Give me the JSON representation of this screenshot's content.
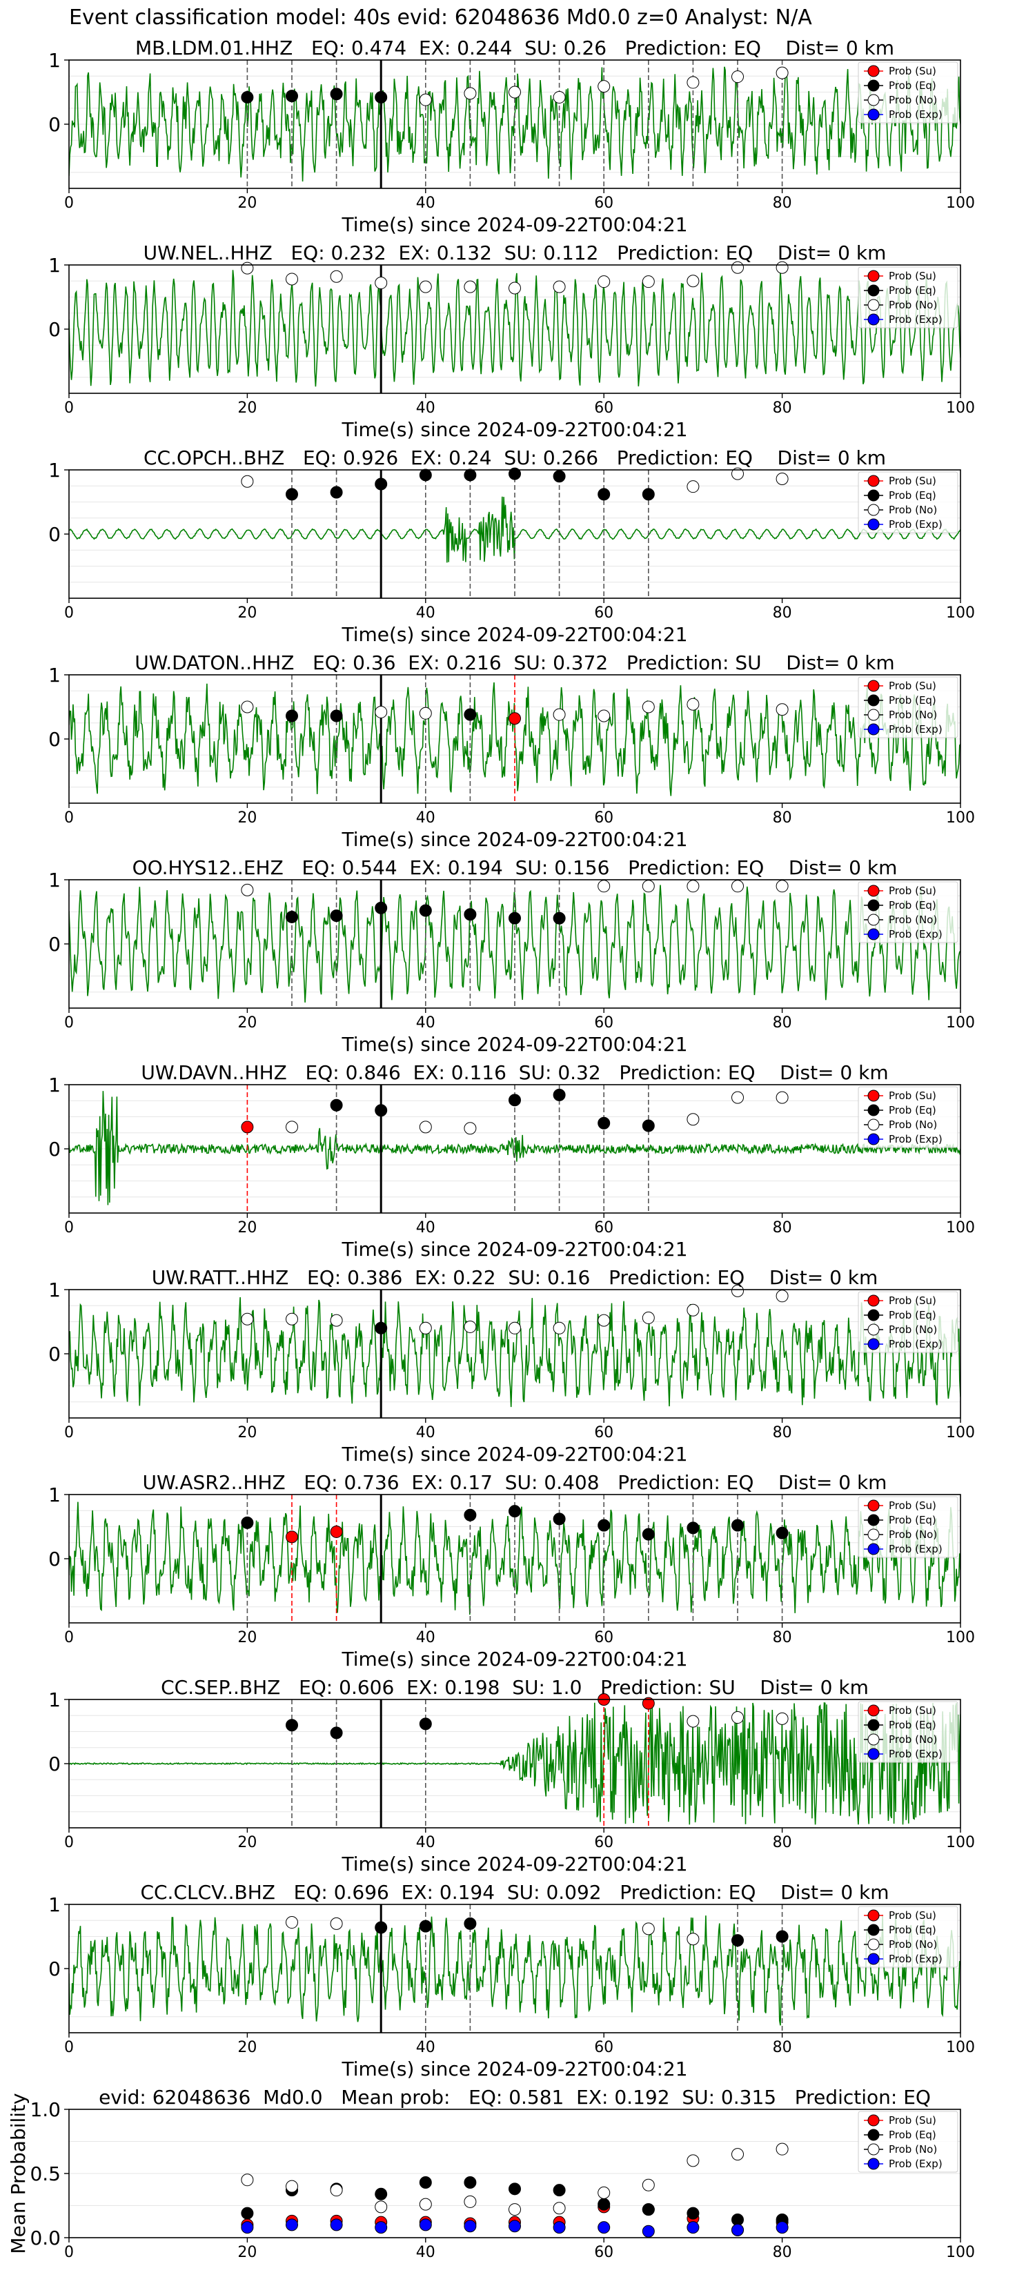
{
  "suptitle": "Event classification model: 40s evid: 62048636 Md0.0 z=0 Analyst: N/A",
  "legend_labels": [
    "Prob (Su)",
    "Prob (Eq)",
    "Prob (No)",
    "Prob (Exp)"
  ],
  "colors": {
    "trace": "#008000",
    "su": "#ff0000",
    "eq": "#000000",
    "no": "#ffffff",
    "exp": "#0000ff",
    "vline_dark": "#555555",
    "vline_red": "#ff0000"
  },
  "chart_data": [
    {
      "type": "line",
      "title": "MB.LDM.01.HHZ   EQ: 0.474  EX: 0.244  SU: 0.26   Prediction: EQ    Dist= 0 km",
      "xlabel": "Time(s) since 2024-09-22T00:04:21",
      "ylabel": "",
      "xlim": [
        0,
        100
      ],
      "ylim": [
        -1,
        1
      ],
      "xticks": [
        0,
        20,
        40,
        60,
        80,
        100
      ],
      "yticks": [
        0,
        1
      ],
      "grid": true,
      "legend": "top-right",
      "trace_style": "noisy",
      "arrival_time": 35,
      "window_lines": [
        20,
        25,
        30,
        40,
        45,
        50,
        55,
        60,
        65,
        70,
        75,
        80
      ],
      "red_lines": [],
      "points": [
        {
          "t": 20,
          "c": "eq",
          "p": 0.42
        },
        {
          "t": 25,
          "c": "eq",
          "p": 0.44
        },
        {
          "t": 30,
          "c": "eq",
          "p": 0.47
        },
        {
          "t": 35,
          "c": "eq",
          "p": 0.42
        },
        {
          "t": 40,
          "c": "no",
          "p": 0.38
        },
        {
          "t": 45,
          "c": "no",
          "p": 0.48
        },
        {
          "t": 50,
          "c": "no",
          "p": 0.5
        },
        {
          "t": 55,
          "c": "no",
          "p": 0.42
        },
        {
          "t": 60,
          "c": "no",
          "p": 0.59
        },
        {
          "t": 70,
          "c": "no",
          "p": 0.65
        },
        {
          "t": 75,
          "c": "no",
          "p": 0.74
        },
        {
          "t": 80,
          "c": "no",
          "p": 0.8
        }
      ]
    },
    {
      "type": "line",
      "title": "UW.NEL..HHZ   EQ: 0.232  EX: 0.132  SU: 0.112   Prediction: EQ    Dist= 0 km",
      "xlabel": "Time(s) since 2024-09-22T00:04:21",
      "ylabel": "",
      "xlim": [
        0,
        100
      ],
      "ylim": [
        -1,
        1
      ],
      "xticks": [
        0,
        20,
        40,
        60,
        80,
        100
      ],
      "yticks": [
        0,
        1
      ],
      "grid": true,
      "legend": "top-right",
      "trace_style": "oscillating",
      "arrival_time": 35,
      "window_lines": [],
      "red_lines": [],
      "points": [
        {
          "t": 20,
          "c": "no",
          "p": 0.95
        },
        {
          "t": 25,
          "c": "no",
          "p": 0.78
        },
        {
          "t": 30,
          "c": "no",
          "p": 0.82
        },
        {
          "t": 35,
          "c": "no",
          "p": 0.72
        },
        {
          "t": 40,
          "c": "no",
          "p": 0.66
        },
        {
          "t": 45,
          "c": "no",
          "p": 0.66
        },
        {
          "t": 50,
          "c": "no",
          "p": 0.64
        },
        {
          "t": 55,
          "c": "no",
          "p": 0.66
        },
        {
          "t": 60,
          "c": "no",
          "p": 0.74
        },
        {
          "t": 65,
          "c": "no",
          "p": 0.74
        },
        {
          "t": 70,
          "c": "no",
          "p": 0.75
        },
        {
          "t": 75,
          "c": "no",
          "p": 0.96
        },
        {
          "t": 80,
          "c": "no",
          "p": 0.96
        }
      ]
    },
    {
      "type": "line",
      "title": "CC.OPCH..BHZ   EQ: 0.926  EX: 0.24  SU: 0.266   Prediction: EQ    Dist= 0 km",
      "xlabel": "Time(s) since 2024-09-22T00:04:21",
      "ylabel": "",
      "xlim": [
        0,
        100
      ],
      "ylim": [
        -1,
        1
      ],
      "xticks": [
        0,
        20,
        40,
        60,
        80,
        100
      ],
      "yticks": [
        0,
        1
      ],
      "grid": true,
      "legend": "top-right",
      "trace_style": "quiet",
      "arrival_time": 35,
      "window_lines": [
        25,
        30,
        40,
        45,
        50,
        55,
        60,
        65
      ],
      "red_lines": [],
      "points": [
        {
          "t": 20,
          "c": "no",
          "p": 0.82
        },
        {
          "t": 25,
          "c": "eq",
          "p": 0.62
        },
        {
          "t": 30,
          "c": "eq",
          "p": 0.65
        },
        {
          "t": 35,
          "c": "eq",
          "p": 0.78
        },
        {
          "t": 40,
          "c": "eq",
          "p": 0.92
        },
        {
          "t": 45,
          "c": "eq",
          "p": 0.92
        },
        {
          "t": 50,
          "c": "eq",
          "p": 0.94
        },
        {
          "t": 55,
          "c": "eq",
          "p": 0.9
        },
        {
          "t": 60,
          "c": "eq",
          "p": 0.62
        },
        {
          "t": 65,
          "c": "eq",
          "p": 0.62
        },
        {
          "t": 70,
          "c": "no",
          "p": 0.74
        },
        {
          "t": 75,
          "c": "no",
          "p": 0.94
        },
        {
          "t": 80,
          "c": "no",
          "p": 0.86
        }
      ]
    },
    {
      "type": "line",
      "title": "UW.DATON..HHZ   EQ: 0.36  EX: 0.216  SU: 0.372   Prediction: SU    Dist= 0 km",
      "xlabel": "Time(s) since 2024-09-22T00:04:21",
      "ylabel": "",
      "xlim": [
        0,
        100
      ],
      "ylim": [
        -1,
        1
      ],
      "xticks": [
        0,
        20,
        40,
        60,
        80,
        100
      ],
      "yticks": [
        0,
        1
      ],
      "grid": true,
      "legend": "top-right",
      "trace_style": "noisy",
      "arrival_time": 35,
      "window_lines": [
        25,
        30,
        40,
        45
      ],
      "red_lines": [
        50
      ],
      "points": [
        {
          "t": 20,
          "c": "no",
          "p": 0.5
        },
        {
          "t": 25,
          "c": "eq",
          "p": 0.36
        },
        {
          "t": 30,
          "c": "eq",
          "p": 0.36
        },
        {
          "t": 35,
          "c": "no",
          "p": 0.42
        },
        {
          "t": 40,
          "c": "no",
          "p": 0.4
        },
        {
          "t": 45,
          "c": "eq",
          "p": 0.38
        },
        {
          "t": 50,
          "c": "su",
          "p": 0.32
        },
        {
          "t": 55,
          "c": "no",
          "p": 0.38
        },
        {
          "t": 60,
          "c": "no",
          "p": 0.36
        },
        {
          "t": 65,
          "c": "no",
          "p": 0.5
        },
        {
          "t": 70,
          "c": "no",
          "p": 0.54
        },
        {
          "t": 80,
          "c": "no",
          "p": 0.46
        }
      ]
    },
    {
      "type": "line",
      "title": "OO.HYS12..EHZ   EQ: 0.544  EX: 0.194  SU: 0.156   Prediction: EQ    Dist= 0 km",
      "xlabel": "Time(s) since 2024-09-22T00:04:21",
      "ylabel": "",
      "xlim": [
        0,
        100
      ],
      "ylim": [
        -1,
        1
      ],
      "xticks": [
        0,
        20,
        40,
        60,
        80,
        100
      ],
      "yticks": [
        0,
        1
      ],
      "grid": true,
      "legend": "top-right",
      "trace_style": "oscillating",
      "arrival_time": 35,
      "window_lines": [
        25,
        30,
        40,
        45,
        50,
        55
      ],
      "red_lines": [],
      "points": [
        {
          "t": 20,
          "c": "no",
          "p": 0.84
        },
        {
          "t": 25,
          "c": "eq",
          "p": 0.42
        },
        {
          "t": 30,
          "c": "eq",
          "p": 0.44
        },
        {
          "t": 35,
          "c": "eq",
          "p": 0.56
        },
        {
          "t": 40,
          "c": "eq",
          "p": 0.52
        },
        {
          "t": 45,
          "c": "eq",
          "p": 0.46
        },
        {
          "t": 50,
          "c": "eq",
          "p": 0.4
        },
        {
          "t": 55,
          "c": "eq",
          "p": 0.4
        },
        {
          "t": 60,
          "c": "no",
          "p": 0.9
        },
        {
          "t": 65,
          "c": "no",
          "p": 0.9
        },
        {
          "t": 70,
          "c": "no",
          "p": 0.9
        },
        {
          "t": 75,
          "c": "no",
          "p": 0.9
        },
        {
          "t": 80,
          "c": "no",
          "p": 0.9
        }
      ]
    },
    {
      "type": "line",
      "title": "UW.DAVN..HHZ   EQ: 0.846  EX: 0.116  SU: 0.32   Prediction: EQ    Dist= 0 km",
      "xlabel": "Time(s) since 2024-09-22T00:04:21",
      "ylabel": "",
      "xlim": [
        0,
        100
      ],
      "ylim": [
        -1,
        1
      ],
      "xticks": [
        0,
        20,
        40,
        60,
        80,
        100
      ],
      "yticks": [
        0,
        1
      ],
      "grid": true,
      "legend": "top-right",
      "trace_style": "spiky",
      "arrival_time": 35,
      "window_lines": [
        30,
        50,
        55,
        60,
        65
      ],
      "red_lines": [
        20
      ],
      "points": [
        {
          "t": 20,
          "c": "su",
          "p": 0.34
        },
        {
          "t": 25,
          "c": "no",
          "p": 0.34
        },
        {
          "t": 30,
          "c": "eq",
          "p": 0.68
        },
        {
          "t": 35,
          "c": "eq",
          "p": 0.6
        },
        {
          "t": 40,
          "c": "no",
          "p": 0.34
        },
        {
          "t": 45,
          "c": "no",
          "p": 0.32
        },
        {
          "t": 50,
          "c": "eq",
          "p": 0.76
        },
        {
          "t": 55,
          "c": "eq",
          "p": 0.84
        },
        {
          "t": 60,
          "c": "eq",
          "p": 0.4
        },
        {
          "t": 65,
          "c": "eq",
          "p": 0.36
        },
        {
          "t": 70,
          "c": "no",
          "p": 0.46
        },
        {
          "t": 75,
          "c": "no",
          "p": 0.8
        },
        {
          "t": 80,
          "c": "no",
          "p": 0.8
        }
      ]
    },
    {
      "type": "line",
      "title": "UW.RATT..HHZ   EQ: 0.386  EX: 0.22  SU: 0.16   Prediction: EQ    Dist= 0 km",
      "xlabel": "Time(s) since 2024-09-22T00:04:21",
      "ylabel": "",
      "xlim": [
        0,
        100
      ],
      "ylim": [
        -1,
        1
      ],
      "xticks": [
        0,
        20,
        40,
        60,
        80,
        100
      ],
      "yticks": [
        0,
        1
      ],
      "grid": true,
      "legend": "top-right",
      "trace_style": "noisy",
      "arrival_time": 35,
      "window_lines": [],
      "red_lines": [],
      "points": [
        {
          "t": 20,
          "c": "no",
          "p": 0.54
        },
        {
          "t": 25,
          "c": "no",
          "p": 0.54
        },
        {
          "t": 30,
          "c": "no",
          "p": 0.52
        },
        {
          "t": 35,
          "c": "eq",
          "p": 0.4
        },
        {
          "t": 40,
          "c": "no",
          "p": 0.4
        },
        {
          "t": 45,
          "c": "no",
          "p": 0.42
        },
        {
          "t": 50,
          "c": "no",
          "p": 0.4
        },
        {
          "t": 55,
          "c": "no",
          "p": 0.4
        },
        {
          "t": 60,
          "c": "no",
          "p": 0.52
        },
        {
          "t": 65,
          "c": "no",
          "p": 0.56
        },
        {
          "t": 70,
          "c": "no",
          "p": 0.68
        },
        {
          "t": 75,
          "c": "no",
          "p": 0.98
        },
        {
          "t": 80,
          "c": "no",
          "p": 0.9
        }
      ]
    },
    {
      "type": "line",
      "title": "UW.ASR2..HHZ   EQ: 0.736  EX: 0.17  SU: 0.408   Prediction: EQ    Dist= 0 km",
      "xlabel": "Time(s) since 2024-09-22T00:04:21",
      "ylabel": "",
      "xlim": [
        0,
        100
      ],
      "ylim": [
        -1,
        1
      ],
      "xticks": [
        0,
        20,
        40,
        60,
        80,
        100
      ],
      "yticks": [
        0,
        1
      ],
      "grid": true,
      "legend": "top-right",
      "trace_style": "noisy",
      "arrival_time": 35,
      "window_lines": [
        20,
        45,
        50,
        55,
        60,
        65,
        70,
        75,
        80
      ],
      "red_lines": [
        25,
        30
      ],
      "points": [
        {
          "t": 20,
          "c": "eq",
          "p": 0.56
        },
        {
          "t": 25,
          "c": "su",
          "p": 0.34
        },
        {
          "t": 30,
          "c": "su",
          "p": 0.42
        },
        {
          "t": 45,
          "c": "eq",
          "p": 0.68
        },
        {
          "t": 50,
          "c": "eq",
          "p": 0.74
        },
        {
          "t": 55,
          "c": "eq",
          "p": 0.62
        },
        {
          "t": 60,
          "c": "eq",
          "p": 0.52
        },
        {
          "t": 65,
          "c": "eq",
          "p": 0.38
        },
        {
          "t": 70,
          "c": "eq",
          "p": 0.48
        },
        {
          "t": 75,
          "c": "eq",
          "p": 0.52
        },
        {
          "t": 80,
          "c": "eq",
          "p": 0.4
        }
      ]
    },
    {
      "type": "line",
      "title": "CC.SEP..BHZ   EQ: 0.606  EX: 0.198  SU: 1.0   Prediction: SU    Dist= 0 km",
      "xlabel": "Time(s) since 2024-09-22T00:04:21",
      "ylabel": "",
      "xlim": [
        0,
        100
      ],
      "ylim": [
        -1,
        1
      ],
      "xticks": [
        0,
        20,
        40,
        60,
        80,
        100
      ],
      "yticks": [
        0,
        1
      ],
      "grid": true,
      "legend": "top-right",
      "trace_style": "burst",
      "arrival_time": 35,
      "window_lines": [
        25,
        30,
        40
      ],
      "red_lines": [
        60,
        65
      ],
      "points": [
        {
          "t": 25,
          "c": "eq",
          "p": 0.6
        },
        {
          "t": 30,
          "c": "eq",
          "p": 0.48
        },
        {
          "t": 40,
          "c": "eq",
          "p": 0.62
        },
        {
          "t": 60,
          "c": "su",
          "p": 1.0
        },
        {
          "t": 65,
          "c": "su",
          "p": 0.94
        },
        {
          "t": 70,
          "c": "no",
          "p": 0.66
        },
        {
          "t": 75,
          "c": "no",
          "p": 0.72
        },
        {
          "t": 80,
          "c": "no",
          "p": 0.7
        }
      ]
    },
    {
      "type": "line",
      "title": "CC.CLCV..BHZ   EQ: 0.696  EX: 0.194  SU: 0.092   Prediction: EQ    Dist= 0 km",
      "xlabel": "Time(s) since 2024-09-22T00:04:21",
      "ylabel": "",
      "xlim": [
        0,
        100
      ],
      "ylim": [
        -1,
        1
      ],
      "xticks": [
        0,
        20,
        40,
        60,
        80,
        100
      ],
      "yticks": [
        0,
        1
      ],
      "grid": true,
      "legend": "top-right",
      "trace_style": "noisy",
      "arrival_time": 35,
      "window_lines": [
        40,
        45,
        75,
        80
      ],
      "red_lines": [],
      "points": [
        {
          "t": 25,
          "c": "no",
          "p": 0.72
        },
        {
          "t": 30,
          "c": "no",
          "p": 0.7
        },
        {
          "t": 35,
          "c": "eq",
          "p": 0.64
        },
        {
          "t": 40,
          "c": "eq",
          "p": 0.66
        },
        {
          "t": 45,
          "c": "eq",
          "p": 0.7
        },
        {
          "t": 65,
          "c": "no",
          "p": 0.62
        },
        {
          "t": 70,
          "c": "no",
          "p": 0.46
        },
        {
          "t": 75,
          "c": "eq",
          "p": 0.44
        },
        {
          "t": 80,
          "c": "eq",
          "p": 0.5
        }
      ]
    },
    {
      "type": "scatter",
      "title": "evid: 62048636  Md0.0   Mean prob:   EQ: 0.581  EX: 0.192  SU: 0.315   Prediction: EQ",
      "xlabel": "",
      "ylabel": "Mean Probability",
      "xlim": [
        0,
        100
      ],
      "ylim": [
        0,
        1
      ],
      "xticks": [
        0,
        20,
        40,
        60,
        80,
        100
      ],
      "yticks": [
        0.0,
        0.5,
        1.0
      ],
      "yticklabels": [
        "0.0",
        "0.5",
        "1.0"
      ],
      "grid": true,
      "legend": "top-right",
      "x": [
        20,
        25,
        30,
        35,
        40,
        45,
        50,
        55,
        60,
        65,
        70,
        75,
        80
      ],
      "series": [
        {
          "name": "Prob (Su)",
          "c": "su",
          "values": [
            0.1,
            0.13,
            0.13,
            0.12,
            0.12,
            0.11,
            0.12,
            0.12,
            0.24,
            0.22,
            0.15,
            0.06,
            0.12
          ]
        },
        {
          "name": "Prob (Eq)",
          "c": "eq",
          "values": [
            0.19,
            0.37,
            0.38,
            0.34,
            0.43,
            0.43,
            0.38,
            0.37,
            0.26,
            0.22,
            0.19,
            0.14,
            0.14
          ]
        },
        {
          "name": "Prob (No)",
          "c": "no",
          "values": [
            0.45,
            0.4,
            0.37,
            0.24,
            0.26,
            0.28,
            0.22,
            0.23,
            0.35,
            0.41,
            0.6,
            0.65,
            0.69
          ]
        },
        {
          "name": "Prob (Exp)",
          "c": "exp",
          "values": [
            0.08,
            0.1,
            0.1,
            0.08,
            0.1,
            0.09,
            0.09,
            0.08,
            0.08,
            0.05,
            0.08,
            0.06,
            0.08
          ]
        }
      ]
    }
  ]
}
